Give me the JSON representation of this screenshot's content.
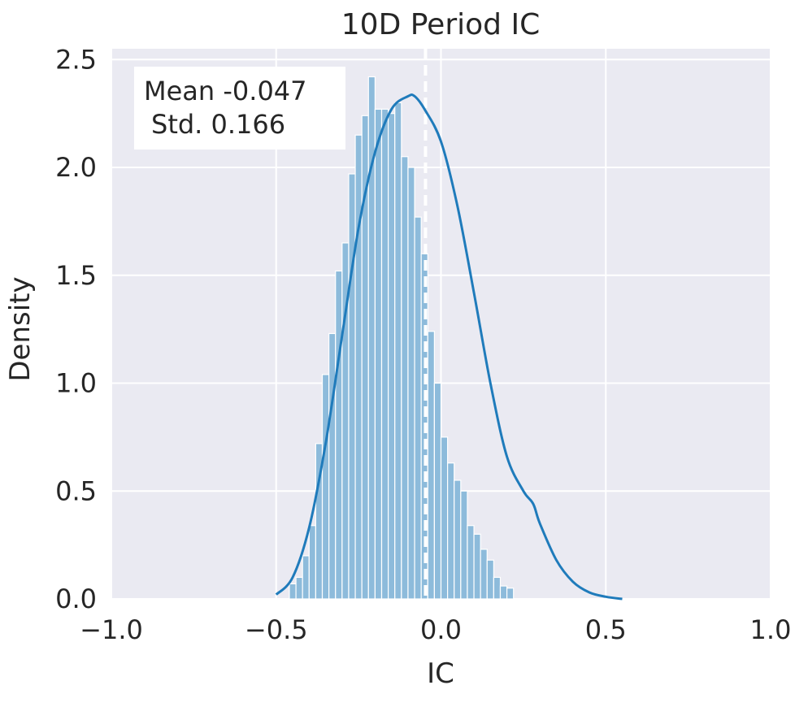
{
  "chart_data": {
    "type": "histogram",
    "title": "10D Period IC",
    "xlabel": "IC",
    "ylabel": "Density",
    "xlim": [
      -1.0,
      1.0
    ],
    "ylim": [
      0.0,
      2.55
    ],
    "xticks": [
      -1.0,
      -0.5,
      0.0,
      0.5,
      1.0
    ],
    "xtick_labels": [
      "−1.0",
      "−0.5",
      "0.0",
      "0.5",
      "1.0"
    ],
    "yticks": [
      0.0,
      0.5,
      1.0,
      1.5,
      2.0,
      2.5
    ],
    "ytick_labels": [
      "0.0",
      "0.5",
      "1.0",
      "1.5",
      "2.0",
      "2.5"
    ],
    "grid": true,
    "bins": {
      "start": -0.46,
      "width": 0.02,
      "heights": [
        0.07,
        0.1,
        0.2,
        0.34,
        0.72,
        1.04,
        1.23,
        1.52,
        1.65,
        1.97,
        2.15,
        2.24,
        2.42,
        2.27,
        2.27,
        2.25,
        2.3,
        2.05,
        2.0,
        1.77,
        1.6,
        1.24,
        1.0,
        0.75,
        0.63,
        0.55,
        0.5,
        0.34,
        0.3,
        0.23,
        0.18,
        0.1,
        0.06,
        0.05
      ]
    },
    "kde": {
      "x": [
        -0.5,
        -0.45,
        -0.4,
        -0.35,
        -0.3,
        -0.25,
        -0.2,
        -0.15,
        -0.1,
        -0.08,
        -0.05,
        0.0,
        0.05,
        0.1,
        0.15,
        0.2,
        0.25,
        0.28,
        0.3,
        0.35,
        0.4,
        0.45,
        0.5,
        0.55
      ],
      "y": [
        0.02,
        0.1,
        0.33,
        0.72,
        1.22,
        1.72,
        2.07,
        2.27,
        2.33,
        2.33,
        2.27,
        2.12,
        1.82,
        1.42,
        1.0,
        0.66,
        0.5,
        0.44,
        0.35,
        0.18,
        0.08,
        0.03,
        0.01,
        0.0
      ]
    },
    "mean_line": {
      "x": -0.047,
      "style": "dashed"
    },
    "annotation": {
      "line1": "Mean -0.047",
      "line2": "Std. 0.166"
    },
    "colors": {
      "plot_background": "#EAEAF2",
      "grid": "#FFFFFF",
      "bar_fill": "#8DBBDB",
      "bar_edge": "#FFFFFF",
      "kde_line": "#1F7BBB",
      "mean_line": "#FFFFFF",
      "annotation_box": "#FFFFFF"
    }
  }
}
